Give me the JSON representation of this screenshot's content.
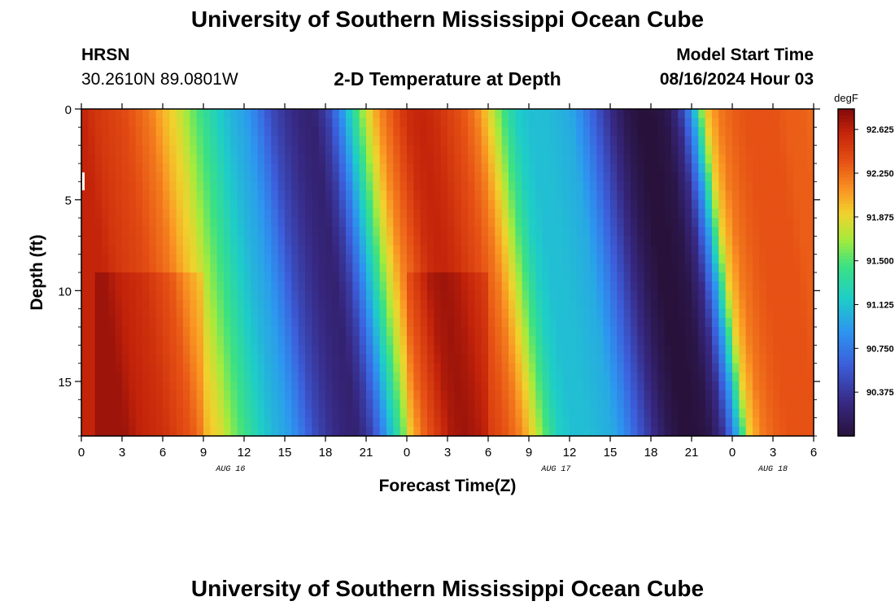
{
  "header": {
    "title": "University of Southern Mississippi Ocean Cube",
    "station": "HRSN",
    "coords": "30.2610N  89.0801W",
    "subtitle": "2-D Temperature at Depth",
    "model_label": "Model Start Time",
    "model_time": "08/16/2024 Hour 03"
  },
  "footer": {
    "title": "University of Southern Mississippi Ocean Cube"
  },
  "colorbar": {
    "unit": "degF",
    "ticks": [
      "92.625",
      "92.250",
      "91.875",
      "91.500",
      "91.125",
      "90.750",
      "90.375"
    ],
    "min": 90.0,
    "max": 92.8
  },
  "chart_data": {
    "type": "heatmap",
    "title": "2-D Temperature at Depth",
    "xlabel": "Forecast Time(Z)",
    "ylabel": "Depth (ft)",
    "x_tick_labels": [
      "0",
      "3",
      "6",
      "9",
      "12",
      "15",
      "18",
      "21",
      "0",
      "3",
      "6",
      "9",
      "12",
      "15",
      "18",
      "21",
      "0",
      "3",
      "6"
    ],
    "day_labels": [
      {
        "text": "AUG 16",
        "hour": 11
      },
      {
        "text": "AUG 17",
        "hour": 35
      },
      {
        "text": "AUG 18",
        "hour": 51
      }
    ],
    "x_range_hours": [
      0,
      54
    ],
    "y_tick_labels": [
      "0",
      "5",
      "10",
      "15"
    ],
    "y_range_ft": [
      0,
      18
    ],
    "value_range_degF": [
      90.0,
      92.8
    ],
    "description_hint": "warm bands around hours 0-9, 21-30, 45-54; cool bands near hours 16-18 and 40-43; cooling fronts arrive later at depth",
    "surface_profile_degF": [
      92.6,
      92.5,
      92.45,
      92.4,
      92.3,
      92.2,
      92.0,
      91.85,
      91.6,
      91.4,
      91.2,
      91.05,
      90.95,
      90.75,
      90.5,
      90.35,
      90.25,
      90.2,
      90.4,
      90.8,
      91.3,
      91.8,
      92.15,
      92.35,
      92.55,
      92.6,
      92.55,
      92.45,
      92.35,
      92.2,
      91.9,
      91.5,
      91.2,
      91.1,
      91.1,
      91.05,
      91.0,
      90.8,
      90.55,
      90.3,
      90.1,
      90.0,
      90.0,
      90.05,
      90.3,
      90.9,
      91.9,
      92.2,
      92.3,
      92.35,
      92.35,
      92.35,
      92.3,
      92.3,
      92.25
    ]
  }
}
